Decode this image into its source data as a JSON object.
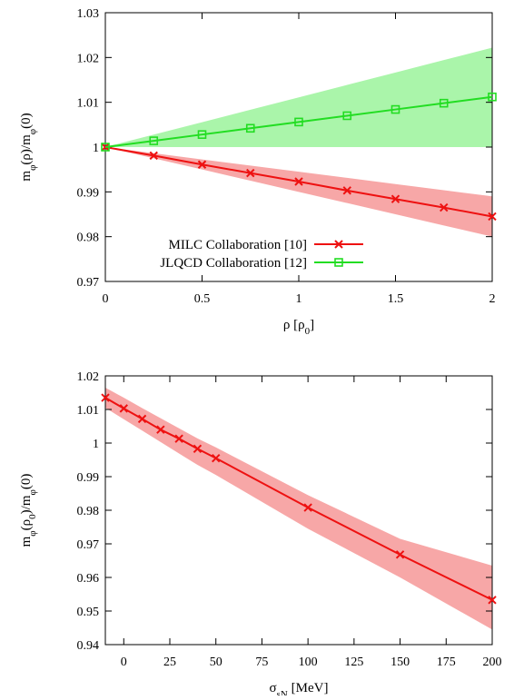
{
  "chart_data": [
    {
      "type": "line",
      "xlabel": "ρ [ρ0]",
      "xlabel_parts": {
        "base": "ρ [ρ",
        "sub": "0",
        "end": "]"
      },
      "ylabel": "mφ(ρ)/mφ(0)",
      "xlim": [
        0,
        2
      ],
      "ylim": [
        0.97,
        1.03
      ],
      "xticks": [
        "0",
        "0.5",
        "1",
        "1.5",
        "2"
      ],
      "xtick_values": [
        0,
        0.5,
        1,
        1.5,
        2
      ],
      "yticks": [
        "0.97",
        "0.98",
        "0.99",
        "1",
        "1.01",
        "1.02",
        "1.03"
      ],
      "ytick_values": [
        0.97,
        0.98,
        0.99,
        1.0,
        1.01,
        1.02,
        1.03
      ],
      "grid": false,
      "legend_position": "bottom-left",
      "x": [
        0,
        0.25,
        0.5,
        0.75,
        1.0,
        1.25,
        1.5,
        1.75,
        2.0
      ],
      "series": [
        {
          "name": "MILC Collaboration [10]",
          "color": "#ee1111",
          "band_color": "#f7a7a7",
          "marker": "x",
          "values": [
            1.0,
            0.9981,
            0.9961,
            0.9942,
            0.9923,
            0.9903,
            0.9884,
            0.9865,
            0.9845
          ],
          "band_lower": [
            1.0,
            0.9975,
            0.995,
            0.9925,
            0.99,
            0.9875,
            0.985,
            0.9825,
            0.98
          ],
          "band_upper": [
            1.0,
            0.99862,
            0.99725,
            0.99587,
            0.9945,
            0.99313,
            0.99175,
            0.99037,
            0.989
          ]
        },
        {
          "name": "JLQCD Collaboration [12]",
          "color": "#22dd22",
          "band_color": "#aaf5aa",
          "marker": "square",
          "values": [
            1.0,
            1.0014,
            1.0028,
            1.0042,
            1.0056,
            1.007,
            1.0084,
            1.0098,
            1.0112
          ],
          "band_lower": [
            1.0,
            1.0,
            1.0,
            1.0,
            1.0,
            1.0,
            1.0,
            1.0,
            1.0
          ],
          "band_upper": [
            1.0,
            1.00278,
            1.00555,
            1.00833,
            1.0111,
            1.01388,
            1.01665,
            1.01943,
            1.0222
          ]
        }
      ]
    },
    {
      "type": "line",
      "xlabel": "σsN [MeV]",
      "xlabel_parts": {
        "base": "σ",
        "sub": "sN",
        "end": " [MeV]"
      },
      "ylabel": "mφ(ρ0)/mφ(0)",
      "xlim": [
        -10,
        200
      ],
      "ylim": [
        0.94,
        1.02
      ],
      "xticks": [
        "0",
        "25",
        "50",
        "75",
        "100",
        "125",
        "150",
        "175",
        "200"
      ],
      "xtick_values": [
        0,
        25,
        50,
        75,
        100,
        125,
        150,
        175,
        200
      ],
      "yticks": [
        "0.94",
        "0.95",
        "0.96",
        "0.97",
        "0.98",
        "0.99",
        "1",
        "1.01",
        "1.02"
      ],
      "ytick_values": [
        0.94,
        0.95,
        0.96,
        0.97,
        0.98,
        0.99,
        1.0,
        1.01,
        1.02
      ],
      "grid": false,
      "x": [
        -10,
        0,
        10,
        20,
        30,
        40,
        50,
        100,
        150,
        200
      ],
      "series": [
        {
          "color": "#ee1111",
          "band_color": "#f7a7a7",
          "marker": "x",
          "values": [
            1.0135,
            1.0103,
            1.0072,
            1.004,
            1.0013,
            0.9983,
            0.9955,
            0.9808,
            0.9668,
            0.9533
          ],
          "band_lower": [
            1.0105,
            1.0071,
            1.0037,
            1.0003,
            0.9969,
            0.9935,
            0.9905,
            0.9745,
            0.96,
            0.9445
          ],
          "band_upper": [
            1.0165,
            1.0135,
            1.0104,
            1.0074,
            1.0044,
            1.0014,
            0.9987,
            0.9845,
            0.9715,
            0.9635
          ]
        }
      ]
    }
  ]
}
